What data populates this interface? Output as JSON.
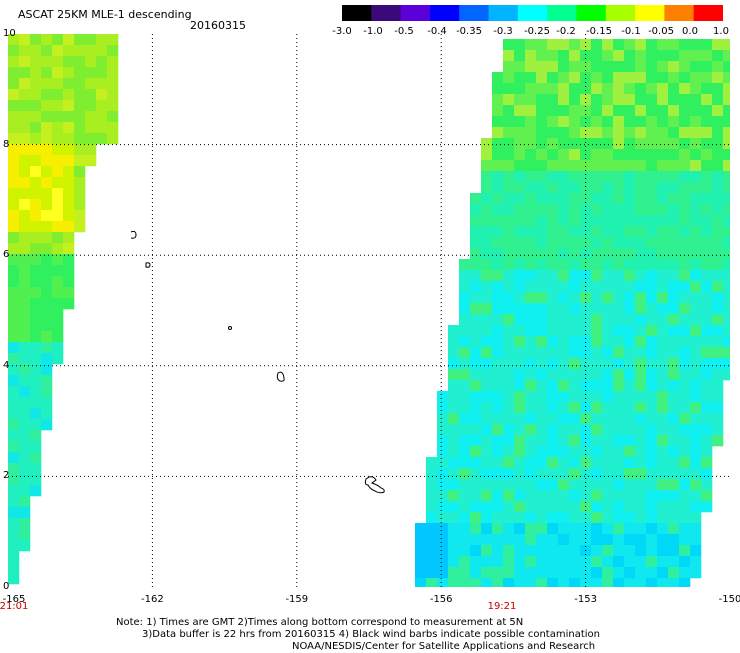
{
  "header": {
    "title": "ASCAT 25KM MLE-1 descending",
    "date": "20160315"
  },
  "colorbar": {
    "labels": [
      "-3.0",
      "-1.0",
      "-0.5",
      "-0.4",
      "-0.35",
      "-0.3",
      "-0.25",
      "-0.2",
      "-0.15",
      "-0.1",
      "-0.05",
      "0.0",
      "1.0"
    ],
    "colors": [
      "#000000",
      "#3a0a7a",
      "#5a00d8",
      "#0000ff",
      "#0066ff",
      "#00b4ff",
      "#00ffff",
      "#00ff90",
      "#00ff00",
      "#a8ff00",
      "#ffff00",
      "#ff8000",
      "#ff0000"
    ]
  },
  "axes": {
    "y_labels": [
      "10",
      "8",
      "6",
      "4",
      "2",
      "0"
    ],
    "x_labels": [
      "-165",
      "-162",
      "-159",
      "-156",
      "-153",
      "-150"
    ],
    "time_labels": [
      "21:01",
      "19:21"
    ]
  },
  "map_data": {
    "lon_range": [
      -165,
      -150
    ],
    "lat_range": [
      0,
      10
    ],
    "grid": true,
    "swaths": [
      {
        "name": "west",
        "pass_time": "21:01",
        "dominant_value_range": [
          -0.25,
          -0.05
        ]
      },
      {
        "name": "east",
        "pass_time": "19:21",
        "dominant_value_range": [
          -0.35,
          -0.15
        ]
      }
    ]
  },
  "notes": {
    "line1": "Note: 1) Times are GMT 2)Times along bottom correspond to measurement at 5N",
    "line2": "3)Data buffer is 22 hrs from 20160315 4) Black wind barbs indicate possible contamination",
    "line3": "NOAA/NESDIS/Center for Satellite Applications and Research"
  }
}
